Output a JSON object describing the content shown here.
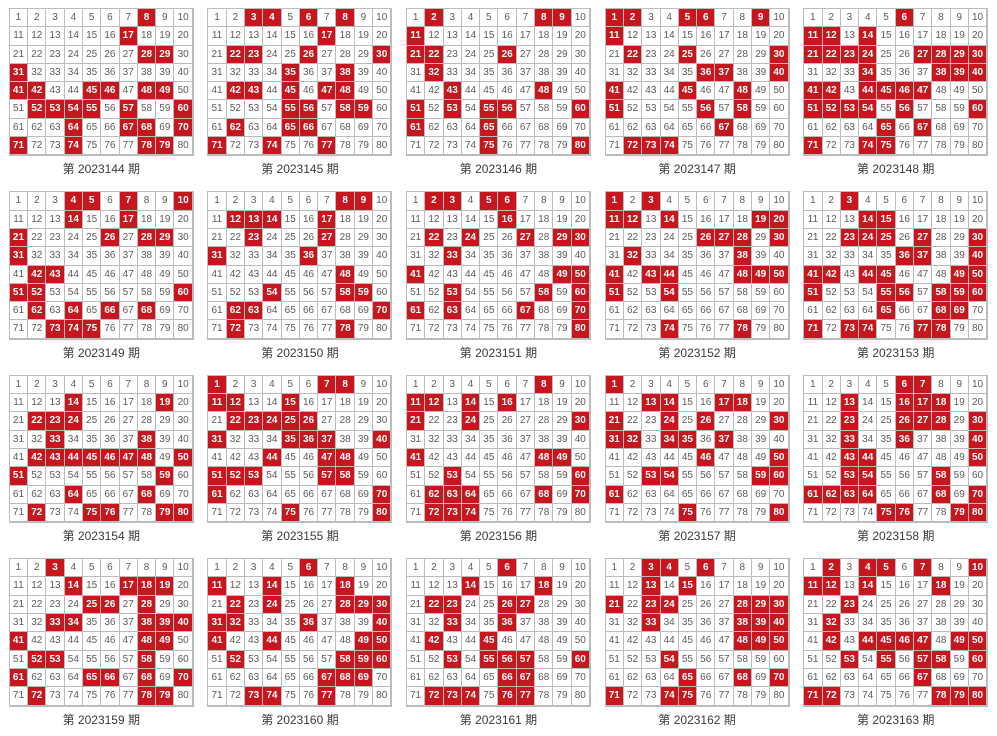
{
  "grid": {
    "cols": 10,
    "rows": 8,
    "maxNumber": 80,
    "cellBorderColor": "#bcbcbc",
    "cellBg": "#ffffff",
    "cellColor": "#5a5a5a",
    "highlightBg": "#c8161e",
    "highlightColor": "#ffffff",
    "cellFontSize": 10,
    "captionFontSize": 12,
    "captionColor": "#3a3a3a"
  },
  "captionPrefix": "第 ",
  "captionSuffix": " 期",
  "panels": [
    {
      "period": "2023144",
      "highlights": [
        8,
        17,
        28,
        29,
        31,
        41,
        42,
        45,
        46,
        48,
        49,
        52,
        53,
        54,
        55,
        57,
        60,
        64,
        67,
        68,
        70,
        71,
        74,
        78,
        79
      ]
    },
    {
      "period": "2023145",
      "highlights": [
        3,
        4,
        6,
        8,
        17,
        22,
        23,
        26,
        30,
        35,
        38,
        42,
        43,
        45,
        47,
        48,
        55,
        56,
        58,
        59,
        62,
        65,
        66,
        71,
        74,
        77
      ]
    },
    {
      "period": "2023146",
      "highlights": [
        2,
        8,
        9,
        11,
        21,
        22,
        26,
        32,
        43,
        48,
        51,
        53,
        55,
        56,
        60,
        61,
        65,
        75,
        80
      ]
    },
    {
      "period": "2023147",
      "highlights": [
        1,
        2,
        5,
        6,
        9,
        11,
        22,
        25,
        30,
        36,
        37,
        40,
        41,
        45,
        48,
        51,
        56,
        58,
        67,
        72,
        73,
        74
      ]
    },
    {
      "period": "2023148",
      "highlights": [
        6,
        11,
        12,
        14,
        21,
        22,
        23,
        24,
        27,
        28,
        29,
        30,
        34,
        38,
        39,
        40,
        41,
        42,
        44,
        45,
        46,
        47,
        51,
        52,
        53,
        54,
        56,
        60,
        65,
        67,
        71,
        74,
        75
      ]
    },
    {
      "period": "2023149",
      "highlights": [
        4,
        5,
        7,
        10,
        14,
        17,
        21,
        26,
        28,
        29,
        31,
        42,
        43,
        51,
        52,
        60,
        62,
        64,
        66,
        68,
        73,
        74,
        75
      ]
    },
    {
      "period": "2023150",
      "highlights": [
        8,
        9,
        12,
        13,
        14,
        17,
        23,
        27,
        31,
        36,
        48,
        54,
        58,
        59,
        62,
        63,
        70,
        72,
        78
      ]
    },
    {
      "period": "2023151",
      "highlights": [
        2,
        3,
        5,
        6,
        16,
        22,
        24,
        27,
        29,
        30,
        33,
        41,
        49,
        50,
        53,
        58,
        60,
        61,
        63,
        67,
        70,
        80
      ]
    },
    {
      "period": "2023152",
      "highlights": [
        1,
        3,
        11,
        12,
        14,
        19,
        20,
        26,
        27,
        28,
        30,
        32,
        38,
        41,
        43,
        44,
        48,
        49,
        50,
        51,
        54,
        74,
        78
      ]
    },
    {
      "period": "2023153",
      "highlights": [
        3,
        14,
        15,
        23,
        24,
        25,
        27,
        30,
        36,
        37,
        40,
        41,
        42,
        44,
        45,
        49,
        50,
        51,
        55,
        56,
        58,
        59,
        60,
        65,
        68,
        69,
        71,
        73,
        74,
        77,
        78
      ]
    },
    {
      "period": "2023154",
      "highlights": [
        14,
        19,
        22,
        23,
        24,
        33,
        38,
        42,
        43,
        44,
        45,
        46,
        47,
        48,
        50,
        51,
        59,
        64,
        68,
        72,
        75,
        76,
        79,
        80
      ]
    },
    {
      "period": "2023155",
      "highlights": [
        1,
        7,
        8,
        11,
        12,
        15,
        22,
        23,
        24,
        25,
        26,
        31,
        35,
        36,
        37,
        40,
        44,
        47,
        48,
        51,
        52,
        53,
        57,
        58,
        61,
        70,
        75,
        80
      ]
    },
    {
      "period": "2023156",
      "highlights": [
        8,
        11,
        12,
        14,
        16,
        21,
        24,
        30,
        41,
        48,
        49,
        53,
        60,
        62,
        63,
        64,
        68,
        70,
        72,
        73,
        74
      ]
    },
    {
      "period": "2023157",
      "highlights": [
        1,
        13,
        14,
        17,
        18,
        21,
        24,
        26,
        30,
        31,
        32,
        34,
        35,
        37,
        46,
        50,
        53,
        54,
        59,
        60,
        61,
        75,
        80
      ]
    },
    {
      "period": "2023158",
      "highlights": [
        6,
        7,
        13,
        16,
        17,
        18,
        23,
        26,
        27,
        28,
        30,
        33,
        36,
        40,
        43,
        44,
        50,
        53,
        54,
        58,
        61,
        62,
        63,
        64,
        68,
        70,
        75,
        76,
        79,
        80
      ]
    },
    {
      "period": "2023159",
      "highlights": [
        3,
        14,
        17,
        18,
        19,
        25,
        26,
        28,
        33,
        34,
        38,
        39,
        40,
        41,
        48,
        49,
        52,
        53,
        58,
        61,
        65,
        66,
        68,
        70,
        72,
        78,
        79
      ]
    },
    {
      "period": "2023160",
      "highlights": [
        6,
        11,
        14,
        18,
        22,
        24,
        28,
        29,
        30,
        31,
        32,
        36,
        40,
        41,
        44,
        49,
        50,
        52,
        58,
        59,
        60,
        67,
        68,
        69,
        73,
        74,
        77
      ]
    },
    {
      "period": "2023161",
      "highlights": [
        6,
        14,
        18,
        22,
        23,
        26,
        27,
        33,
        36,
        42,
        45,
        53,
        55,
        56,
        57,
        60,
        66,
        67,
        72,
        73,
        74,
        76,
        77
      ]
    },
    {
      "period": "2023162",
      "highlights": [
        3,
        4,
        6,
        13,
        15,
        21,
        23,
        24,
        28,
        29,
        30,
        33,
        38,
        39,
        40,
        48,
        49,
        50,
        54,
        65,
        68,
        70,
        71,
        74,
        75
      ]
    },
    {
      "period": "2023163",
      "highlights": [
        2,
        4,
        5,
        7,
        10,
        11,
        12,
        14,
        18,
        23,
        32,
        42,
        44,
        45,
        46,
        47,
        49,
        50,
        53,
        55,
        57,
        58,
        60,
        67,
        71,
        72,
        78,
        79,
        80
      ]
    }
  ]
}
